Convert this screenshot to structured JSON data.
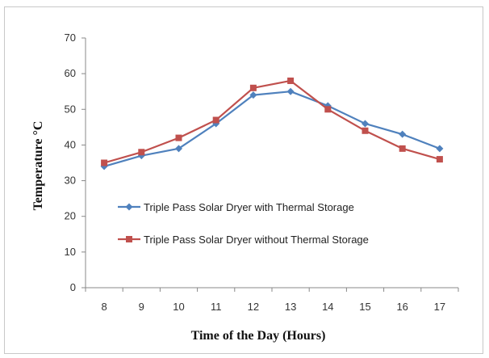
{
  "chart_data": {
    "type": "line",
    "title": "",
    "xlabel": "Time of the Day (Hours)",
    "ylabel": "Temperature °C",
    "x": [
      8,
      9,
      10,
      11,
      12,
      13,
      14,
      15,
      16,
      17
    ],
    "ylim": [
      0,
      70
    ],
    "yticks": [
      0,
      10,
      20,
      30,
      40,
      50,
      60,
      70
    ],
    "grid": false,
    "legend_position": "center",
    "series": [
      {
        "name": "Triple Pass Solar Dryer with Thermal Storage",
        "values": [
          34,
          37,
          39,
          46,
          54,
          55,
          51,
          46,
          43,
          39
        ],
        "color": "#4f81bd",
        "marker": "diamond"
      },
      {
        "name": "Triple Pass Solar Dryer without Thermal Storage",
        "values": [
          35,
          38,
          42,
          47,
          56,
          58,
          50,
          44,
          39,
          36
        ],
        "color": "#c0504d",
        "marker": "square"
      }
    ]
  }
}
